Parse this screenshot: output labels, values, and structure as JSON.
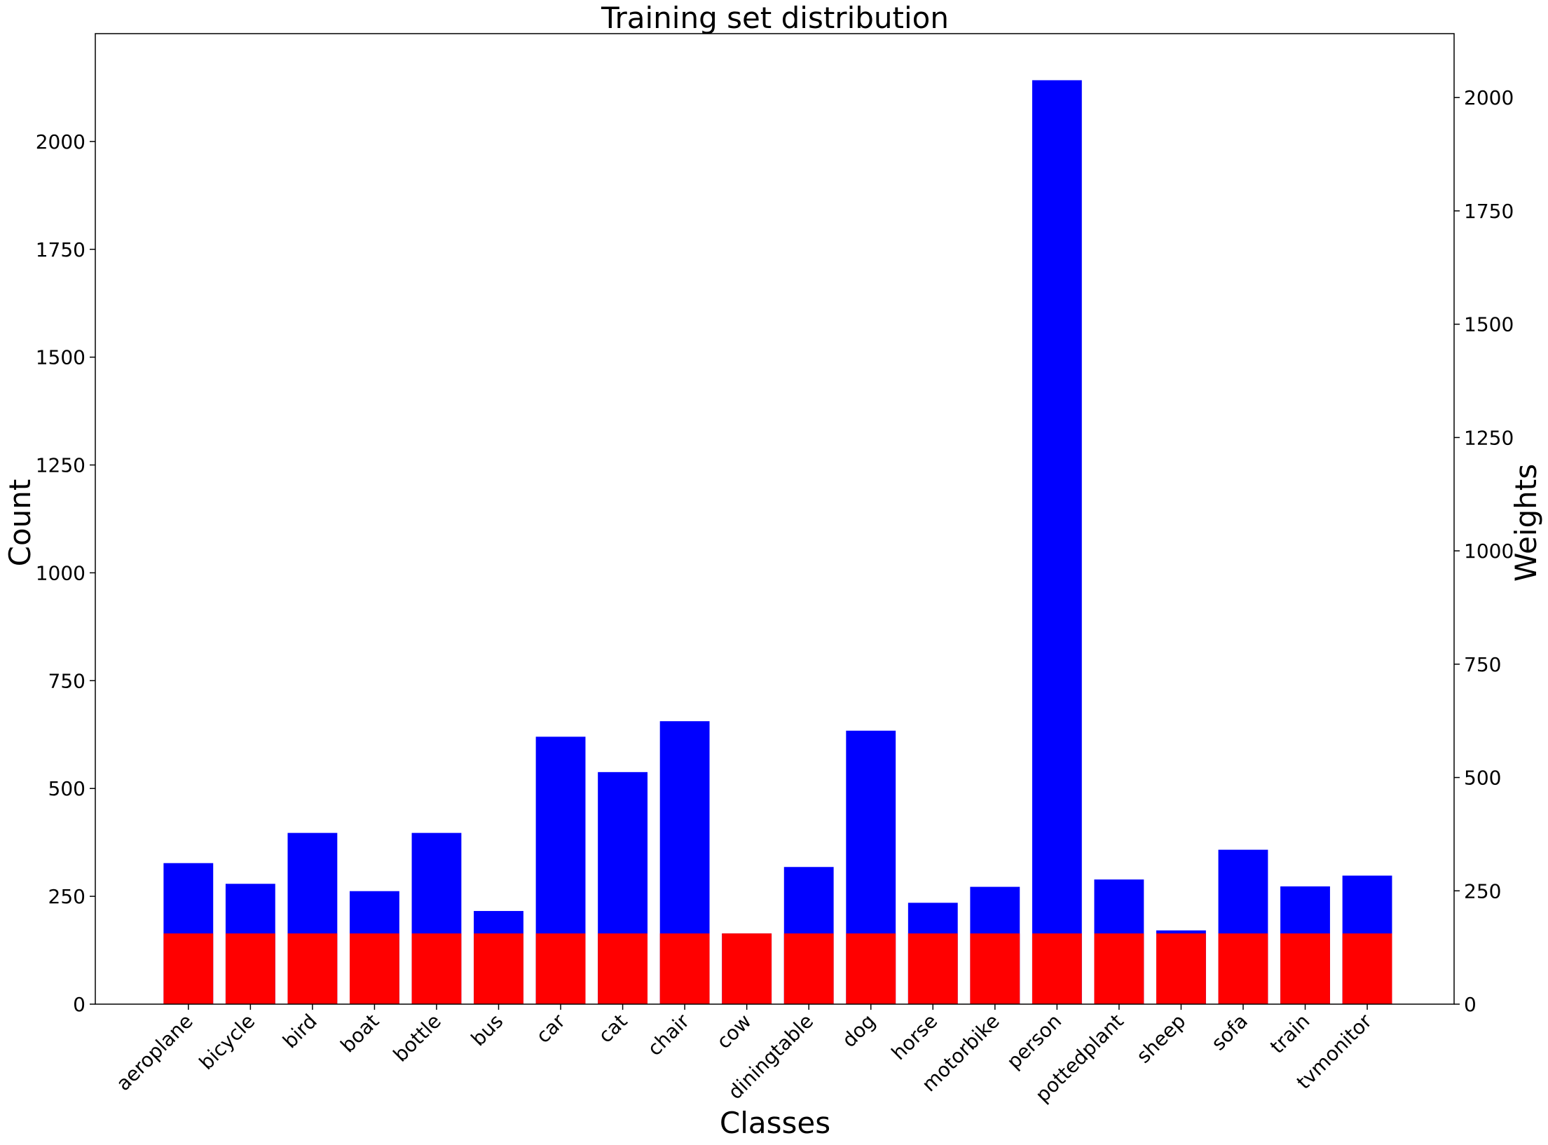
{
  "chart_data": {
    "type": "bar",
    "title": "Training set distribution",
    "xlabel": "Classes",
    "ylabel": "Count",
    "ylabel_right": "Weights",
    "categories": [
      "aeroplane",
      "bicycle",
      "bird",
      "boat",
      "bottle",
      "bus",
      "car",
      "cat",
      "chair",
      "cow",
      "diningtable",
      "dog",
      "horse",
      "motorbike",
      "person",
      "pottedplant",
      "sheep",
      "sofa",
      "train",
      "tvmonitor"
    ],
    "series": [
      {
        "axis": "left",
        "color": "#0000ff",
        "values": [
          327,
          279,
          397,
          262,
          397,
          216,
          620,
          538,
          656,
          164,
          318,
          634,
          235,
          272,
          2142,
          289,
          171,
          358,
          273,
          298
        ]
      },
      {
        "axis": "right",
        "color": "#ff0000",
        "values": [
          156,
          156,
          156,
          156,
          156,
          156,
          156,
          156,
          156,
          156,
          156,
          156,
          156,
          156,
          156,
          156,
          156,
          156,
          156,
          156
        ]
      }
    ],
    "ylim": [
      0,
      2250
    ],
    "yticks": [
      0,
      250,
      500,
      750,
      1000,
      1250,
      1500,
      1750,
      2000
    ],
    "ylim_right": [
      0,
      2141
    ],
    "yticks_right": [
      0,
      250,
      500,
      750,
      1000,
      1250,
      1500,
      1750,
      2000
    ],
    "grid": false,
    "legend": "none"
  }
}
